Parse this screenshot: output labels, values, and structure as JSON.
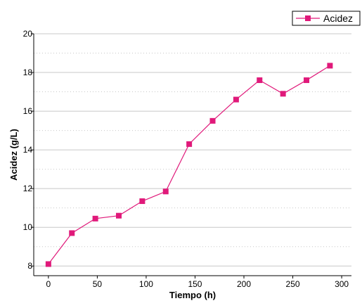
{
  "chart_data": {
    "type": "line",
    "title": "",
    "xlabel": "Tiempo (h)",
    "ylabel": "Acidez (g/L)",
    "xlim": [
      -15,
      310
    ],
    "ylim": [
      7.5,
      20
    ],
    "xticks": [
      0,
      50,
      100,
      150,
      200,
      250,
      300
    ],
    "yticks": [
      8,
      10,
      12,
      14,
      16,
      18,
      20
    ],
    "grid": true,
    "legend_position": "top-right",
    "series": [
      {
        "name": "Acidez",
        "color": "#e0197a",
        "marker": "square",
        "x": [
          0,
          24,
          48,
          72,
          96,
          120,
          144,
          168,
          192,
          216,
          240,
          264,
          288
        ],
        "y": [
          8.1,
          9.7,
          10.45,
          10.6,
          11.35,
          11.85,
          14.3,
          15.5,
          16.6,
          17.6,
          16.9,
          17.6,
          18.35
        ]
      }
    ]
  }
}
